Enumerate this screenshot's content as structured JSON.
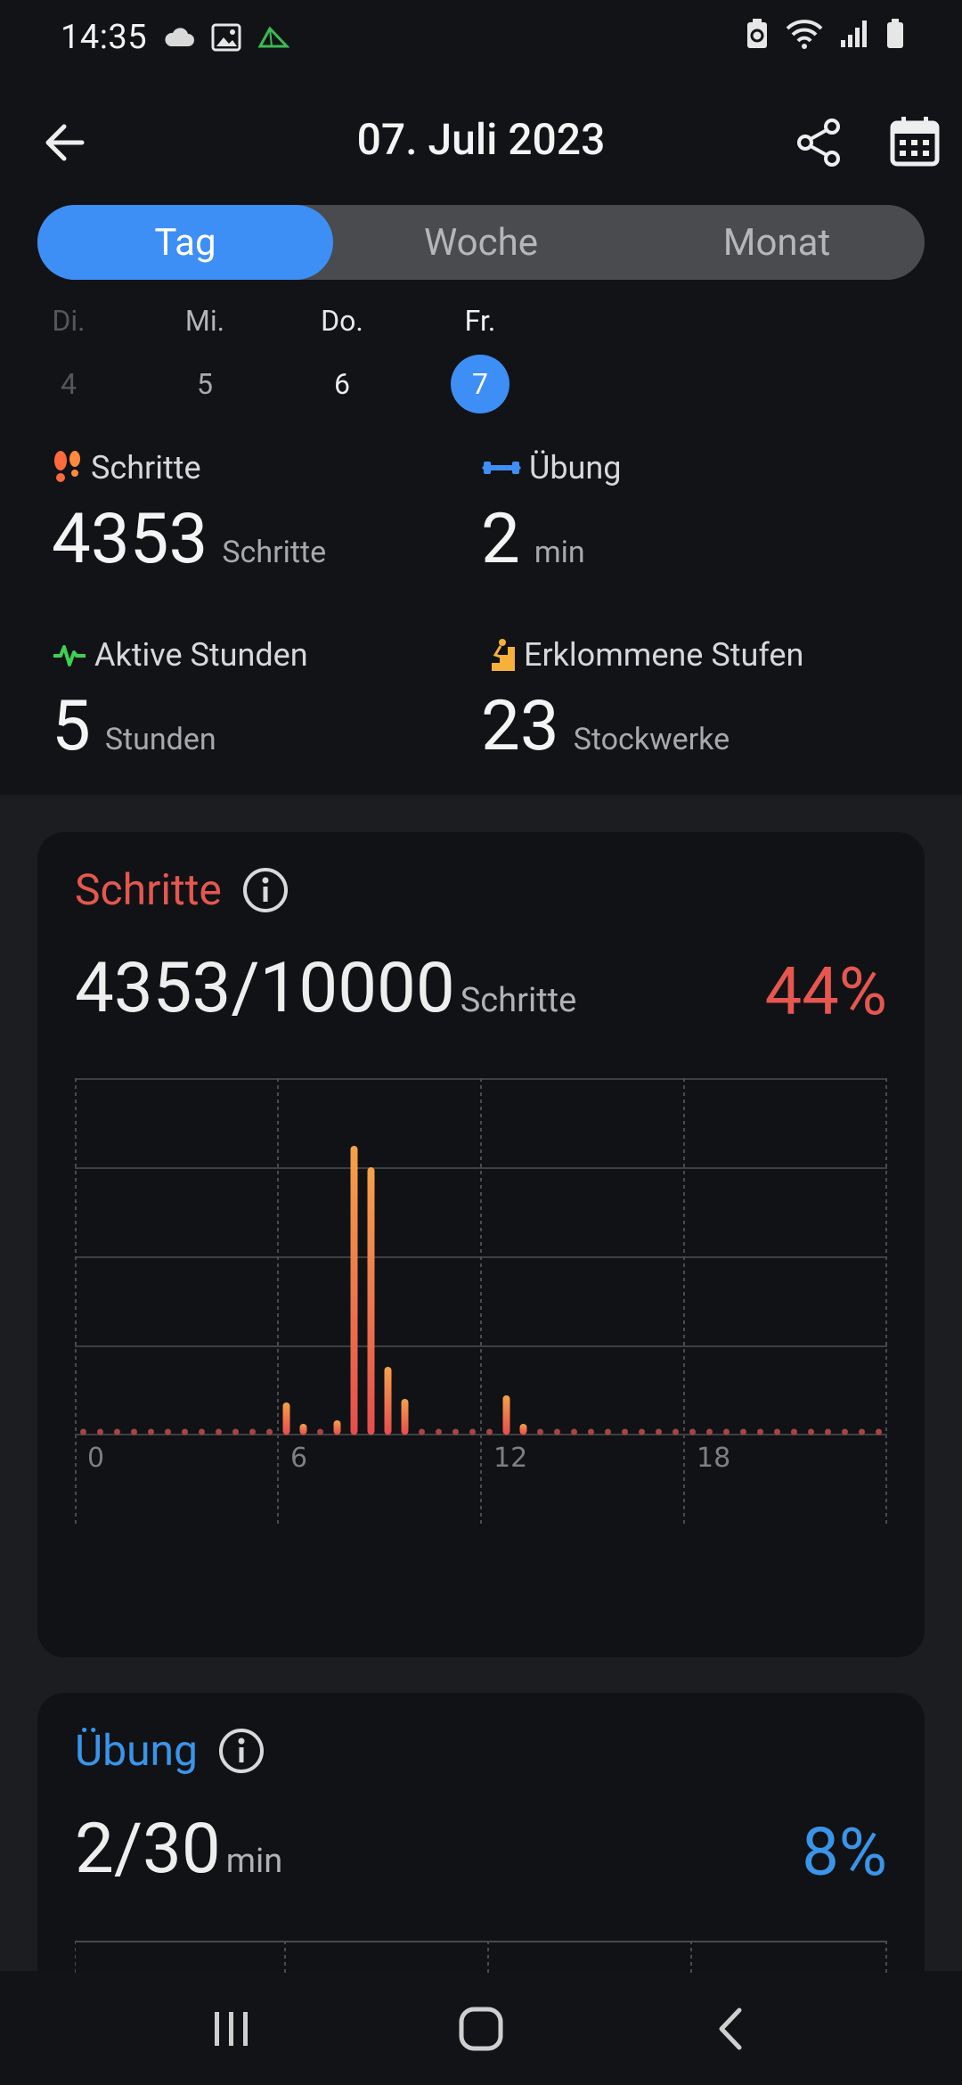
{
  "status": {
    "time": "14:35"
  },
  "header": {
    "title": "07. Juli 2023"
  },
  "tabs": [
    {
      "label": "Tag",
      "active": true
    },
    {
      "label": "Woche",
      "active": false
    },
    {
      "label": "Monat",
      "active": false
    }
  ],
  "days": [
    {
      "name": "Di.",
      "num": "4",
      "state": "dim"
    },
    {
      "name": "Mi.",
      "num": "5",
      "state": "normal"
    },
    {
      "name": "Do.",
      "num": "6",
      "state": "normal"
    },
    {
      "name": "Fr.",
      "num": "7",
      "state": "today"
    }
  ],
  "stats": {
    "steps": {
      "label": "Schritte",
      "value": "4353",
      "unit": "Schritte",
      "icon": "footprints-icon"
    },
    "exercise": {
      "label": "Übung",
      "value": "2",
      "unit": "min",
      "icon": "dumbbell-icon"
    },
    "active_hours": {
      "label": "Aktive Stunden",
      "value": "5",
      "unit": "Stunden",
      "icon": "heartbeat-icon"
    },
    "floors": {
      "label": "Erklommene Stufen",
      "value": "23",
      "unit": "Stockwerke",
      "icon": "stairs-icon"
    }
  },
  "steps_card": {
    "title": "Schritte",
    "value": "4353/10000",
    "unit": "Schritte",
    "percent": "44%",
    "title_color": "#e5574f",
    "percent_color": "#e5574f"
  },
  "exercise_card": {
    "title": "Übung",
    "value": "2/30",
    "unit": "min",
    "percent": "8%",
    "title_color": "#3a95ea",
    "percent_color": "#3a95ea"
  },
  "chart_data": {
    "type": "bar",
    "title": "",
    "xlabel": "",
    "ylabel": "",
    "x_ticks": [
      "0",
      "6",
      "12",
      "18"
    ],
    "x_range": [
      0,
      24
    ],
    "bar_width_hours": 0.5,
    "y_range": [
      0,
      1
    ],
    "y_ticks": [],
    "y_gridlines": 4,
    "grid": true,
    "series": [
      {
        "x": [
          6.0,
          6.5,
          7.5,
          8.0,
          8.5,
          9.0,
          9.5,
          12.5,
          13.0
        ],
        "values": [
          0.09,
          0.03,
          0.04,
          0.81,
          0.75,
          0.19,
          0.1,
          0.11,
          0.03
        ]
      }
    ],
    "bar_gradient": [
      "#e64d4d",
      "#f5a24a"
    ]
  }
}
